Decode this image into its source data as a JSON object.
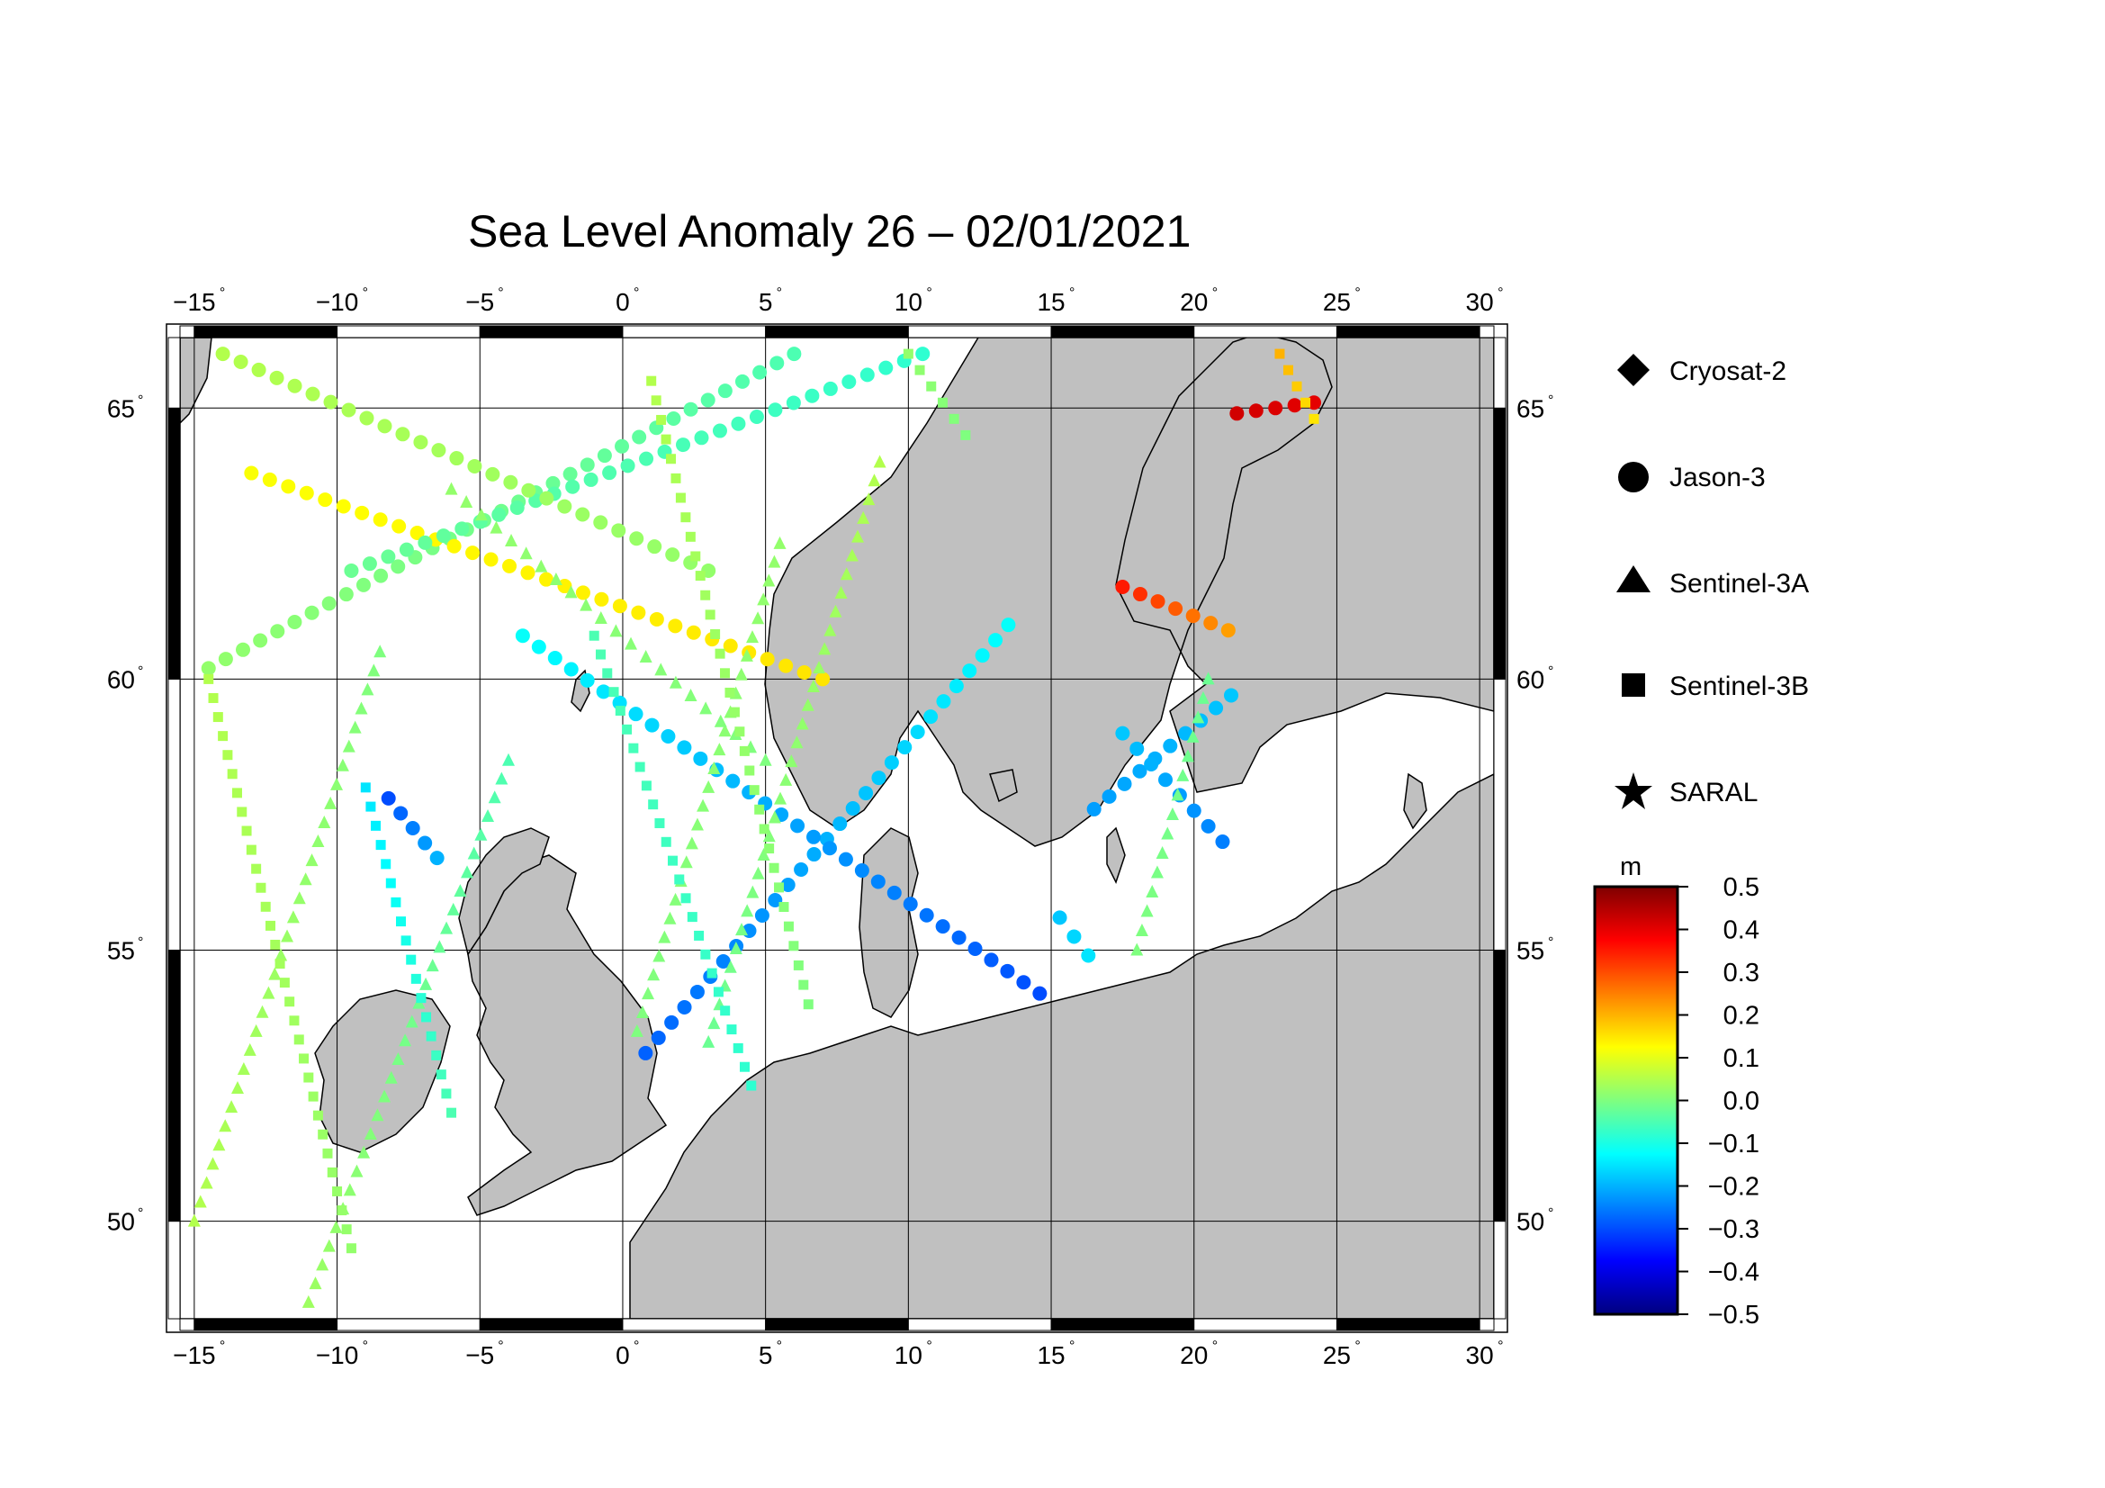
{
  "title": "Sea Level Anomaly 26 – 02/01/2021",
  "map": {
    "lon_range": [
      -15.5,
      30.5
    ],
    "lat_range": [
      48.2,
      66.3
    ],
    "lon_ticks": [
      -15,
      -10,
      -5,
      0,
      5,
      10,
      15,
      20,
      25,
      30
    ],
    "lat_ticks": [
      50,
      55,
      60,
      65
    ],
    "lon_tick_labels": [
      "−15",
      "−10",
      "−5",
      "0",
      "5",
      "10",
      "15",
      "20",
      "25",
      "30"
    ],
    "lat_tick_labels": [
      "50",
      "55",
      "60",
      "65"
    ],
    "land_color": "#c0c0c0",
    "ocean_color": "#ffffff",
    "grid": true
  },
  "legend": {
    "items": [
      {
        "label": "Cryosat-2",
        "symbol": "diamond"
      },
      {
        "label": "Jason-3",
        "symbol": "circle"
      },
      {
        "label": "Sentinel-3A",
        "symbol": "triangle"
      },
      {
        "label": "Sentinel-3B",
        "symbol": "square"
      },
      {
        "label": "SARAL",
        "symbol": "star"
      }
    ]
  },
  "colorbar": {
    "unit": "m",
    "min": -0.5,
    "max": 0.5,
    "tick_values": [
      0.5,
      0.4,
      0.3,
      0.2,
      0.1,
      0.0,
      -0.1,
      -0.2,
      -0.3,
      -0.4,
      -0.5
    ],
    "tick_labels": [
      "0.5",
      "0.4",
      "0.3",
      "0.2",
      "0.1",
      "0.0",
      "−0.1",
      "−0.2",
      "−0.3",
      "−0.4",
      "−0.5"
    ],
    "colors": [
      "#00007f",
      "#0000ff",
      "#007fff",
      "#00ffff",
      "#7fff7f",
      "#ffff00",
      "#ff7f00",
      "#ff0000",
      "#7f0000"
    ]
  },
  "chart_data": {
    "type": "scatter",
    "title": "Sea Level Anomaly 26 – 02/01/2021",
    "xlabel": "",
    "ylabel": "",
    "xlim": [
      -15.5,
      30.5
    ],
    "ylim": [
      48.2,
      66.3
    ],
    "grid": true,
    "legend_position": "right",
    "series": [
      {
        "name": "Jason-3",
        "marker": "circle",
        "tracks": [
          {
            "from": [
              0.8,
              53.1
            ],
            "to": [
              13.5,
              61.0
            ],
            "sla_from": -0.28,
            "sla_to": -0.12
          },
          {
            "from": [
              -3.5,
              60.8
            ],
            "to": [
              14.6,
              54.2
            ],
            "sla_from": -0.12,
            "sla_to": -0.3
          },
          {
            "from": [
              -14.5,
              60.2
            ],
            "to": [
              6.0,
              66.0
            ],
            "sla_from": 0.02,
            "sla_to": -0.05
          },
          {
            "from": [
              -13.0,
              63.8
            ],
            "to": [
              7.0,
              60.0
            ],
            "sla_from": 0.12,
            "sla_to": 0.15
          },
          {
            "from": [
              -9.5,
              62.0
            ],
            "to": [
              10.5,
              66.0
            ],
            "sla_from": -0.02,
            "sla_to": -0.08
          },
          {
            "from": [
              -14.0,
              66.0
            ],
            "to": [
              3.0,
              62.0
            ],
            "sla_from": 0.05,
            "sla_to": 0.02
          },
          {
            "from": [
              16.5,
              57.6
            ],
            "to": [
              21.3,
              59.7
            ],
            "sla_from": -0.22,
            "sla_to": -0.18
          },
          {
            "from": [
              17.5,
              59.0
            ],
            "to": [
              21.0,
              57.0
            ],
            "sla_from": -0.18,
            "sla_to": -0.25
          },
          {
            "from": [
              17.5,
              61.7
            ],
            "to": [
              21.2,
              60.9
            ],
            "sla_from": 0.35,
            "sla_to": 0.22
          },
          {
            "from": [
              21.5,
              64.9
            ],
            "to": [
              24.2,
              65.1
            ],
            "sla_from": 0.42,
            "sla_to": 0.4
          },
          {
            "from": [
              -8.2,
              57.8
            ],
            "to": [
              -6.5,
              56.7
            ],
            "sla_from": -0.3,
            "sla_to": -0.2
          },
          {
            "from": [
              15.3,
              55.6
            ],
            "to": [
              16.3,
              54.9
            ],
            "sla_from": -0.18,
            "sla_to": -0.15
          }
        ]
      },
      {
        "name": "Sentinel-3A",
        "marker": "triangle",
        "tracks": [
          {
            "from": [
              -15.0,
              50.0
            ],
            "to": [
              -8.5,
              60.5
            ],
            "sla_from": 0.05,
            "sla_to": 0.0
          },
          {
            "from": [
              -11.0,
              48.5
            ],
            "to": [
              -4.0,
              58.5
            ],
            "sla_from": 0.03,
            "sla_to": -0.05
          },
          {
            "from": [
              0.5,
              53.5
            ],
            "to": [
              5.5,
              62.5
            ],
            "sla_from": 0.0,
            "sla_to": 0.02
          },
          {
            "from": [
              3.0,
              53.3
            ],
            "to": [
              9.0,
              64.0
            ],
            "sla_from": -0.02,
            "sla_to": 0.05
          },
          {
            "from": [
              18.0,
              55.0
            ],
            "to": [
              20.5,
              60.0
            ],
            "sla_from": 0.0,
            "sla_to": -0.02
          },
          {
            "from": [
              -6.0,
              63.5
            ],
            "to": [
              5.0,
              58.5
            ],
            "sla_from": 0.02,
            "sla_to": 0.0
          }
        ]
      },
      {
        "name": "Sentinel-3B",
        "marker": "square",
        "tracks": [
          {
            "from": [
              -14.5,
              60.0
            ],
            "to": [
              -9.5,
              49.5
            ],
            "sla_from": 0.05,
            "sla_to": 0.02
          },
          {
            "from": [
              -9.0,
              58.0
            ],
            "to": [
              -6.0,
              52.0
            ],
            "sla_from": -0.15,
            "sla_to": -0.05
          },
          {
            "from": [
              -1.0,
              60.8
            ],
            "to": [
              4.5,
              52.5
            ],
            "sla_from": -0.05,
            "sla_to": -0.08
          },
          {
            "from": [
              1.0,
              65.5
            ],
            "to": [
              6.5,
              54.0
            ],
            "sla_from": 0.05,
            "sla_to": 0.0
          },
          {
            "from": [
              10.0,
              66.0
            ],
            "to": [
              12.0,
              64.5
            ],
            "sla_from": 0.02,
            "sla_to": 0.0
          },
          {
            "from": [
              23.0,
              66.0
            ],
            "to": [
              24.2,
              64.8
            ],
            "sla_from": 0.2,
            "sla_to": 0.15
          }
        ]
      }
    ]
  }
}
